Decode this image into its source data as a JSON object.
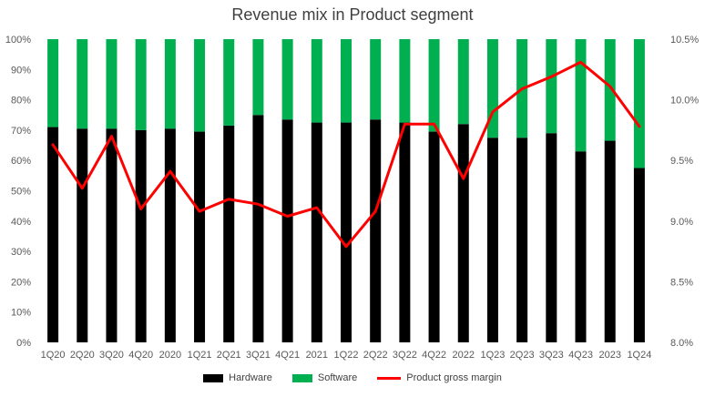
{
  "chart_data": {
    "type": "bar",
    "stacked": true,
    "title": "Revenue mix in Product segment",
    "categories": [
      "1Q20",
      "2Q20",
      "3Q20",
      "4Q20",
      "2020",
      "1Q21",
      "2Q21",
      "3Q21",
      "4Q21",
      "2021",
      "1Q22",
      "2Q22",
      "3Q22",
      "4Q22",
      "2022",
      "1Q23",
      "2Q23",
      "3Q23",
      "4Q23",
      "2023",
      "1Q24"
    ],
    "series": [
      {
        "name": "Hardware",
        "axis": "left",
        "type": "bar",
        "color": "#000000",
        "values": [
          71,
          70.5,
          70.5,
          70,
          70.5,
          69.5,
          71.5,
          75,
          73.5,
          72.5,
          72.5,
          73.5,
          72.5,
          69.5,
          72,
          67.5,
          67.5,
          69,
          63,
          66.5,
          57.5
        ]
      },
      {
        "name": "Software",
        "axis": "left",
        "type": "bar",
        "color": "#00B050",
        "values": [
          29,
          29.5,
          29.5,
          30,
          29.5,
          30.5,
          28.5,
          25,
          26.5,
          27.5,
          27.5,
          26.5,
          27.5,
          30.5,
          28,
          32.5,
          32.5,
          31,
          37,
          33.5,
          42.5
        ]
      },
      {
        "name": "Product gross margin",
        "axis": "right",
        "type": "line",
        "color": "#FF0000",
        "values": [
          9.63,
          9.27,
          9.7,
          9.1,
          9.41,
          9.08,
          9.18,
          9.14,
          9.04,
          9.11,
          8.79,
          9.08,
          9.8,
          9.8,
          9.35,
          9.9,
          10.09,
          10.19,
          10.31,
          10.11,
          9.78
        ]
      }
    ],
    "ylim_left": [
      0,
      100
    ],
    "yticks_left": [
      "0%",
      "10%",
      "20%",
      "30%",
      "40%",
      "50%",
      "60%",
      "70%",
      "80%",
      "90%",
      "100%"
    ],
    "ylim_right": [
      8.0,
      10.5
    ],
    "yticks_right": [
      "8.0%",
      "8.5%",
      "9.0%",
      "9.5%",
      "10.0%",
      "10.5%"
    ],
    "xlabel": "",
    "ylabel": "",
    "legend_position": "bottom"
  }
}
